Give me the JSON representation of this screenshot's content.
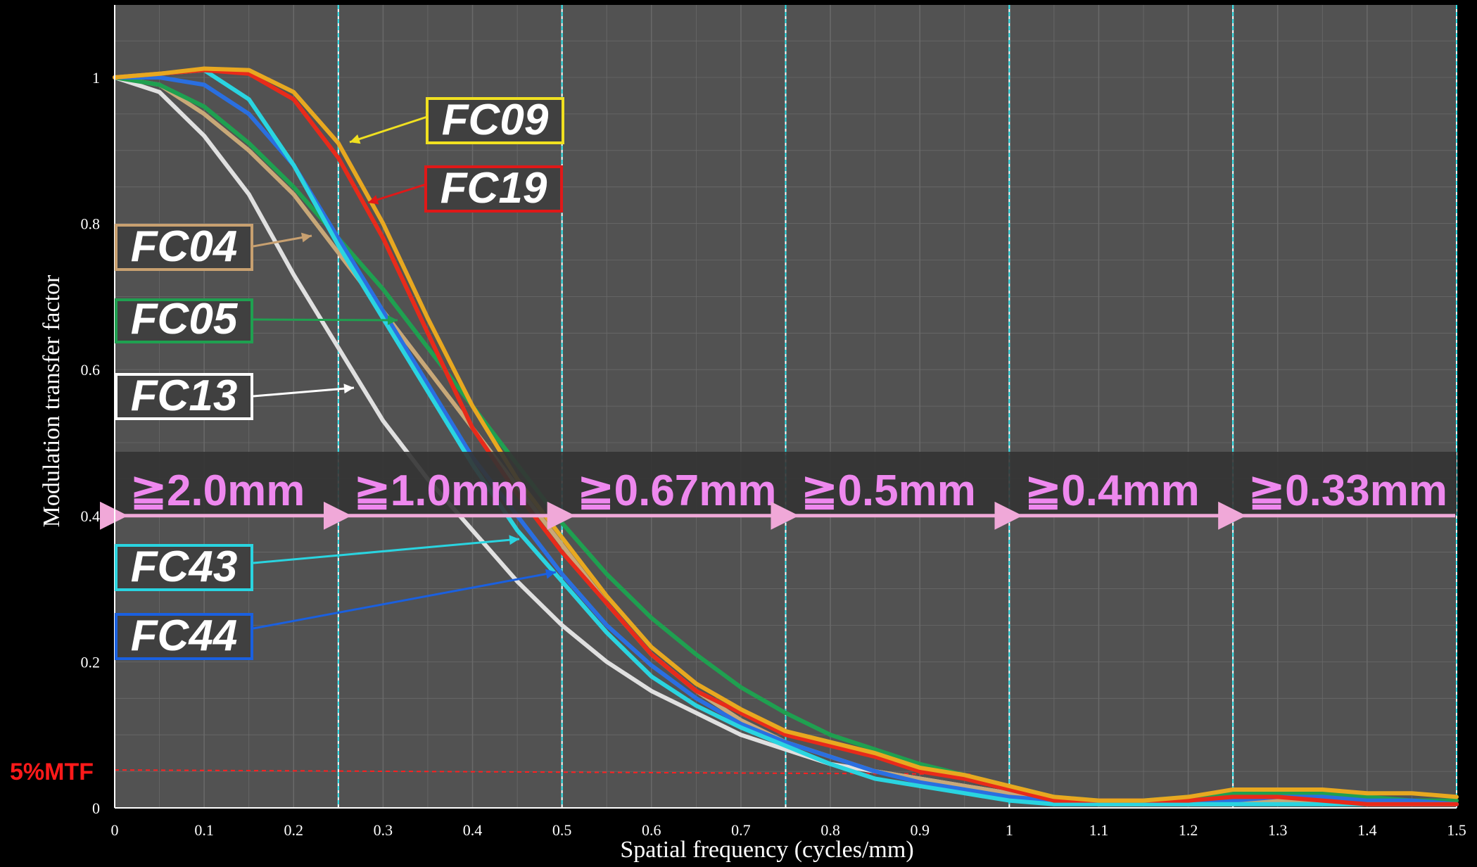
{
  "chart_data": {
    "type": "line",
    "xlabel": "Spatial frequency (cycles/mm)",
    "ylabel": "Modulation transfer factor",
    "xlim": [
      0,
      1.5
    ],
    "ylim": [
      0,
      1.1
    ],
    "x_ticks": [
      "0",
      "0.1",
      "0.2",
      "0.3",
      "0.4",
      "0.5",
      "0.6",
      "0.7",
      "0.8",
      "0.9",
      "1",
      "1.1",
      "1.2",
      "1.3",
      "1.4",
      "1.5"
    ],
    "y_ticks": [
      "0",
      "0.2",
      "0.4",
      "0.6",
      "0.8",
      "1"
    ],
    "grid": true,
    "x": [
      0,
      0.05,
      0.1,
      0.15,
      0.2,
      0.25,
      0.3,
      0.35,
      0.4,
      0.45,
      0.5,
      0.55,
      0.6,
      0.65,
      0.7,
      0.75,
      0.8,
      0.85,
      0.9,
      0.95,
      1.0,
      1.05,
      1.1,
      1.15,
      1.2,
      1.25,
      1.3,
      1.35,
      1.4,
      1.45,
      1.5
    ],
    "series": [
      {
        "name": "FC13",
        "color": "#e0e0e0",
        "values": [
          1.0,
          0.98,
          0.92,
          0.84,
          0.73,
          0.63,
          0.53,
          0.45,
          0.38,
          0.31,
          0.25,
          0.2,
          0.16,
          0.13,
          0.1,
          0.08,
          0.06,
          0.05,
          0.04,
          0.03,
          0.02,
          0.01,
          0.005,
          0.005,
          0.005,
          0.005,
          0.01,
          0.01,
          0.005,
          0.005,
          0.005
        ]
      },
      {
        "name": "FC04",
        "color": "#c8a878",
        "values": [
          1.0,
          0.99,
          0.95,
          0.9,
          0.84,
          0.76,
          0.68,
          0.6,
          0.52,
          0.44,
          0.36,
          0.28,
          0.21,
          0.16,
          0.12,
          0.09,
          0.07,
          0.05,
          0.04,
          0.03,
          0.02,
          0.01,
          0.005,
          0.005,
          0.005,
          0.005,
          0.01,
          0.01,
          0.005,
          0.005,
          0.005
        ]
      },
      {
        "name": "FC05",
        "color": "#1fa050",
        "values": [
          1.0,
          0.99,
          0.96,
          0.91,
          0.85,
          0.78,
          0.71,
          0.63,
          0.55,
          0.47,
          0.39,
          0.32,
          0.26,
          0.21,
          0.165,
          0.13,
          0.1,
          0.08,
          0.06,
          0.045,
          0.03,
          0.015,
          0.01,
          0.01,
          0.015,
          0.02,
          0.02,
          0.02,
          0.015,
          0.01,
          0.01
        ]
      },
      {
        "name": "FC44",
        "color": "#2a6fe0",
        "values": [
          1.0,
          1.0,
          0.99,
          0.95,
          0.88,
          0.78,
          0.68,
          0.58,
          0.48,
          0.4,
          0.32,
          0.25,
          0.195,
          0.15,
          0.115,
          0.09,
          0.07,
          0.05,
          0.035,
          0.025,
          0.015,
          0.01,
          0.01,
          0.01,
          0.01,
          0.01,
          0.015,
          0.015,
          0.01,
          0.01,
          0.005
        ]
      },
      {
        "name": "FC43",
        "color": "#2ad4e0",
        "values": [
          1.0,
          1.005,
          1.01,
          0.97,
          0.88,
          0.77,
          0.67,
          0.57,
          0.47,
          0.38,
          0.31,
          0.24,
          0.18,
          0.14,
          0.11,
          0.085,
          0.06,
          0.04,
          0.03,
          0.02,
          0.01,
          0.005,
          0.005,
          0.005,
          0.005,
          0.005,
          0.005,
          0.005,
          0.005,
          0.005,
          0.005
        ]
      },
      {
        "name": "FC19",
        "color": "#e82a1a",
        "values": [
          1.0,
          1.005,
          1.01,
          1.005,
          0.97,
          0.89,
          0.78,
          0.65,
          0.52,
          0.43,
          0.35,
          0.28,
          0.21,
          0.16,
          0.13,
          0.1,
          0.085,
          0.07,
          0.05,
          0.04,
          0.025,
          0.01,
          0.01,
          0.01,
          0.01,
          0.015,
          0.015,
          0.01,
          0.005,
          0.005,
          0.005
        ]
      },
      {
        "name": "FC09",
        "color": "#e8a820",
        "values": [
          1.0,
          1.005,
          1.012,
          1.01,
          0.98,
          0.91,
          0.8,
          0.67,
          0.55,
          0.45,
          0.37,
          0.29,
          0.22,
          0.17,
          0.135,
          0.105,
          0.09,
          0.075,
          0.055,
          0.045,
          0.03,
          0.015,
          0.01,
          0.01,
          0.015,
          0.025,
          0.025,
          0.025,
          0.02,
          0.02,
          0.015
        ]
      }
    ],
    "legend": [
      {
        "label": "FC09",
        "border": "#f0e020"
      },
      {
        "label": "FC19",
        "border": "#e01818"
      },
      {
        "label": "FC04",
        "border": "#c8a070"
      },
      {
        "label": "FC05",
        "border": "#1fa050"
      },
      {
        "label": "FC13",
        "border": "#ffffff"
      },
      {
        "label": "FC43",
        "border": "#2ad4e0"
      },
      {
        "label": "FC44",
        "border": "#1a60e0"
      }
    ],
    "resolution_bands": [
      "≧2.0mm",
      "≧1.0mm",
      "≧0.67mm",
      "≧0.5mm",
      "≧0.4mm",
      "≧0.33mm"
    ],
    "band_boundaries_x": [
      0.25,
      0.5,
      0.75,
      1.0,
      1.25
    ],
    "band_arrow_y": 0.4,
    "threshold": {
      "label": "5%MTF",
      "y": 0.05,
      "color": "#ff2020"
    }
  }
}
